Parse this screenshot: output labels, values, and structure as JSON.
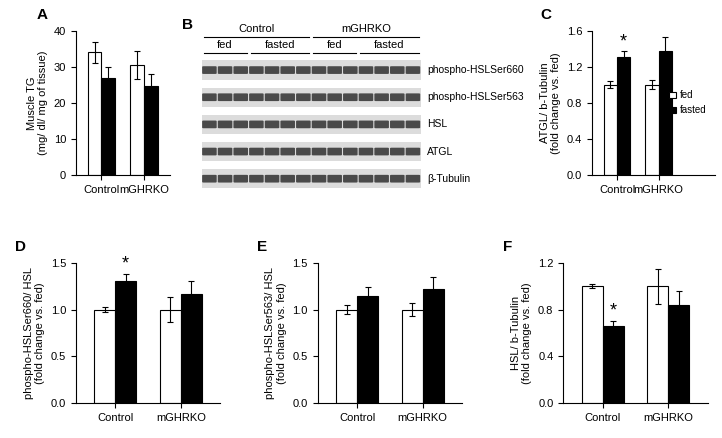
{
  "chart_data": [
    {
      "type": "bar",
      "title": "A",
      "y_label": "Muscle TG\n(mg/ dl/ mg of tissue)",
      "categories": [
        "Control",
        "mGHRKO"
      ],
      "series": [
        {
          "name": "fed",
          "color": "#ffffff",
          "values": [
            34,
            30.5
          ],
          "errors": [
            3,
            3.8
          ]
        },
        {
          "name": "fasted",
          "color": "#000000",
          "values": [
            27,
            24.7
          ],
          "errors": [
            3,
            3.3
          ]
        }
      ],
      "ylim": [
        0,
        40
      ],
      "yticks": [
        0,
        10,
        20,
        30,
        40
      ]
    },
    {
      "type": "bar",
      "title": "C",
      "y_label": "ATGL/ b-Tubulin\n(fold change vs. fed)",
      "categories": [
        "Control",
        "mGHRKO"
      ],
      "series": [
        {
          "name": "fed",
          "color": "#ffffff",
          "values": [
            1.0,
            1.0
          ],
          "errors": [
            0.04,
            0.05
          ]
        },
        {
          "name": "fasted",
          "color": "#000000",
          "values": [
            1.31,
            1.37
          ],
          "errors": [
            0.06,
            0.16
          ]
        }
      ],
      "ylim": [
        0,
        1.6
      ],
      "yticks": [
        {
          "value": 0,
          "label": "0.0"
        },
        0.4,
        0.8,
        1.2,
        1.6
      ],
      "legend": "center right",
      "annotations": [
        {
          "text": "*",
          "category": "Control",
          "series": "fasted"
        }
      ]
    },
    {
      "type": "bar",
      "title": "D",
      "y_label": "phospho-HSLSer660/ HSL\n(fold change vs. fed)",
      "categories": [
        "Control",
        "mGHRKO"
      ],
      "series": [
        {
          "name": "fed",
          "color": "#ffffff",
          "values": [
            1.0,
            1.0
          ],
          "errors": [
            0.03,
            0.13
          ]
        },
        {
          "name": "fasted",
          "color": "#000000",
          "values": [
            1.31,
            1.17
          ],
          "errors": [
            0.07,
            0.14
          ]
        }
      ],
      "ylim": [
        0,
        1.5
      ],
      "yticks": [
        {
          "value": 0,
          "label": "0.0"
        },
        0.5,
        1.0,
        1.5
      ],
      "annotations": [
        {
          "text": "*",
          "category": "Control",
          "series": "fasted"
        }
      ]
    },
    {
      "type": "bar",
      "title": "E",
      "y_label": "phospho-HSLSer563/ HSL\n(fold change vs. fed)",
      "categories": [
        "Control",
        "mGHRKO"
      ],
      "series": [
        {
          "name": "fed",
          "color": "#ffffff",
          "values": [
            1.0,
            1.0
          ],
          "errors": [
            0.05,
            0.07
          ]
        },
        {
          "name": "fasted",
          "color": "#000000",
          "values": [
            1.15,
            1.22
          ],
          "errors": [
            0.09,
            0.13
          ]
        }
      ],
      "ylim": [
        0,
        1.5
      ],
      "yticks": [
        {
          "value": 0,
          "label": "0.0"
        },
        0.5,
        1.0,
        1.5
      ]
    },
    {
      "type": "bar",
      "title": "F",
      "y_label": "HSL/ b-Tubulin\n(fold change vs. fed)",
      "categories": [
        "Control",
        "mGHRKO"
      ],
      "series": [
        {
          "name": "fed",
          "color": "#ffffff",
          "values": [
            1.0,
            1.0
          ],
          "errors": [
            0.02,
            0.15
          ]
        },
        {
          "name": "fasted",
          "color": "#000000",
          "values": [
            0.66,
            0.84
          ],
          "errors": [
            0.04,
            0.12
          ]
        }
      ],
      "ylim": [
        0,
        1.2
      ],
      "yticks": [
        {
          "value": 0,
          "label": "0.0"
        },
        0.4,
        0.8,
        1.2
      ],
      "annotations": [
        {
          "text": "*",
          "category": "Control",
          "series": "fasted"
        }
      ]
    }
  ],
  "blot": {
    "title": "B",
    "groups": [
      {
        "label": "Control",
        "conditions": [
          {
            "label": "fed",
            "lanes": 3
          },
          {
            "label": "fasted",
            "lanes": 4
          }
        ]
      },
      {
        "label": "mGHRKO",
        "conditions": [
          {
            "label": "fed",
            "lanes": 3
          },
          {
            "label": "fasted",
            "lanes": 4
          }
        ]
      }
    ],
    "rows": [
      "phospho-HSLSer660",
      "phospho-HSLSer563",
      "HSL",
      "ATGL",
      "β-Tubulin"
    ]
  }
}
